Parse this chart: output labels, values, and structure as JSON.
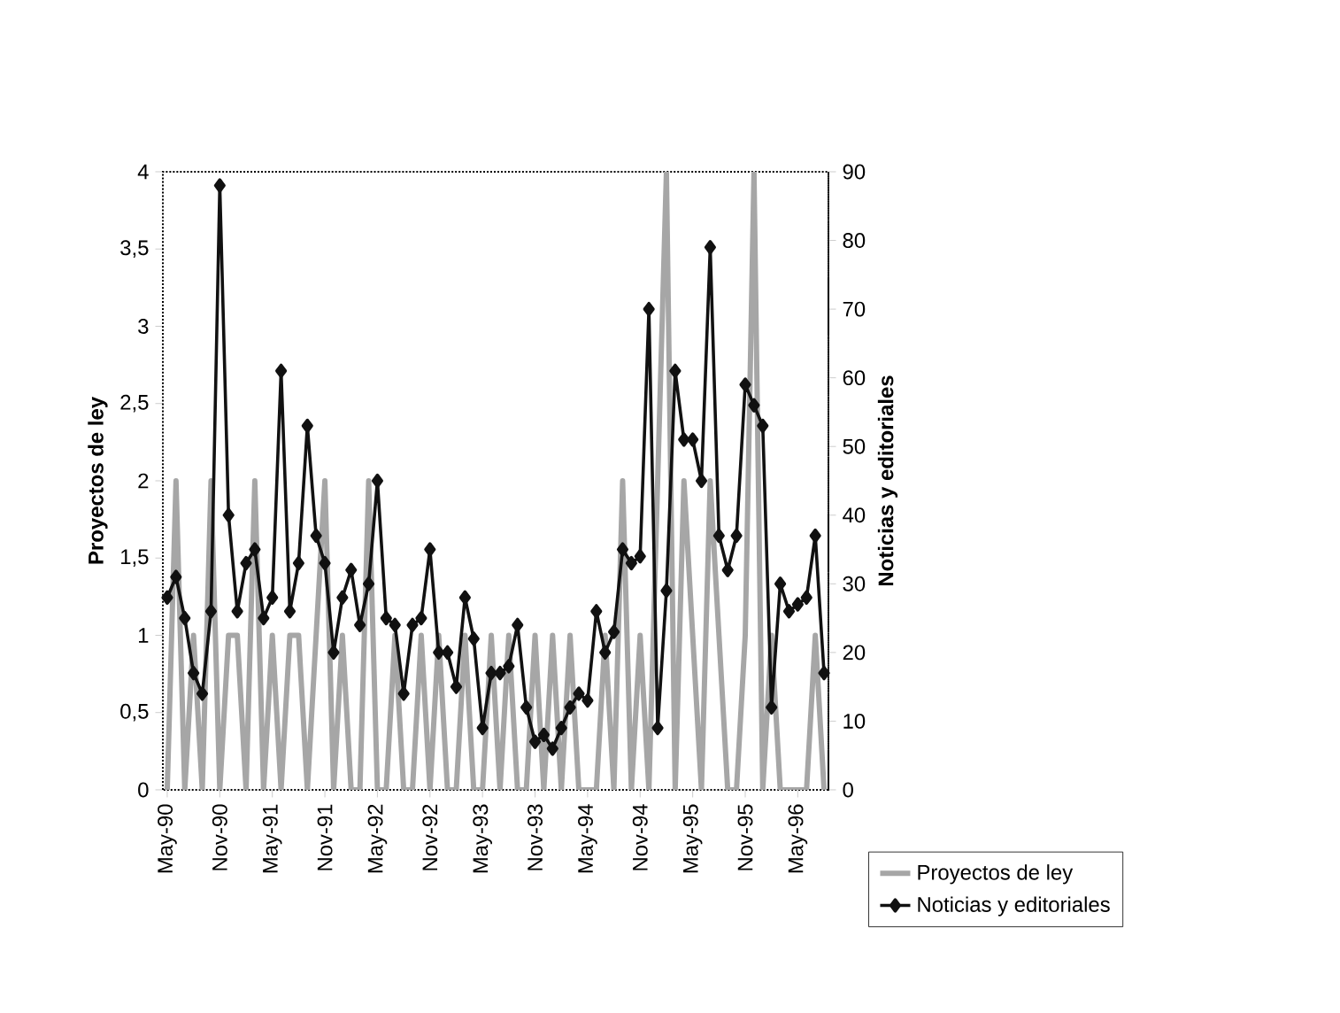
{
  "chart_data": {
    "type": "line",
    "categories": [
      "May-90",
      null,
      null,
      null,
      null,
      null,
      "Nov-90",
      null,
      null,
      null,
      null,
      null,
      "May-91",
      null,
      null,
      null,
      null,
      null,
      "Nov-91",
      null,
      null,
      null,
      null,
      null,
      "May-92",
      null,
      null,
      null,
      null,
      null,
      "Nov-92",
      null,
      null,
      null,
      null,
      null,
      "May-93",
      null,
      null,
      null,
      null,
      null,
      "Nov-93",
      null,
      null,
      null,
      null,
      null,
      "May-94",
      null,
      null,
      null,
      null,
      null,
      "Nov-94",
      null,
      null,
      null,
      null,
      null,
      "May-95",
      null,
      null,
      null,
      null,
      null,
      "Nov-95",
      null,
      null,
      null,
      null,
      null,
      "May-96",
      null,
      null,
      null
    ],
    "series": [
      {
        "name": "Proyectos de ley",
        "color": "#a6a6a6",
        "marker": "none",
        "values": [
          0,
          2,
          0,
          1,
          0,
          2,
          0,
          1,
          1,
          0,
          2,
          0,
          1,
          0,
          1,
          1,
          0,
          1,
          2,
          0,
          1,
          0,
          0,
          2,
          0,
          0,
          1,
          0,
          0,
          1,
          0,
          1,
          0,
          0,
          1,
          0,
          0,
          1,
          0,
          1,
          0,
          0,
          1,
          0,
          1,
          0,
          1,
          0,
          0,
          0,
          1,
          0,
          2,
          0,
          1,
          0,
          2,
          4,
          0,
          2,
          1,
          0,
          2,
          1,
          0,
          0,
          1,
          4,
          0,
          1,
          0,
          0,
          0,
          0,
          1,
          0
        ]
      },
      {
        "name": "Noticias y editoriales",
        "color": "#111111",
        "marker": "diamond",
        "axis": "y2",
        "values": [
          28,
          31,
          25,
          17,
          14,
          26,
          88,
          40,
          26,
          33,
          35,
          25,
          28,
          61,
          26,
          33,
          53,
          37,
          33,
          20,
          28,
          32,
          24,
          30,
          45,
          25,
          24,
          14,
          24,
          25,
          35,
          20,
          20,
          15,
          28,
          22,
          9,
          17,
          17,
          18,
          24,
          12,
          7,
          8,
          6,
          9,
          12,
          14,
          13,
          26,
          20,
          23,
          35,
          33,
          34,
          70,
          9,
          29,
          61,
          51,
          51,
          45,
          79,
          37,
          32,
          37,
          59,
          56,
          53,
          12,
          30,
          26,
          27,
          28,
          37,
          17
        ]
      }
    ],
    "ylabel": "Proyectos de ley",
    "y2label": "Noticias y editoriales",
    "ylim": [
      0,
      4
    ],
    "yticks": [
      0,
      {
        "value": 0.5,
        "label": "0,5"
      },
      1,
      {
        "value": 1.5,
        "label": "1,5"
      },
      2,
      {
        "value": 2.5,
        "label": "2,5"
      },
      3,
      {
        "value": 3.5,
        "label": "3,5"
      },
      4
    ],
    "y2lim": [
      0,
      90
    ],
    "y2ticks": [
      0,
      10,
      20,
      30,
      40,
      50,
      60,
      70,
      80,
      90
    ],
    "legend": "bottom right",
    "grid": false
  }
}
